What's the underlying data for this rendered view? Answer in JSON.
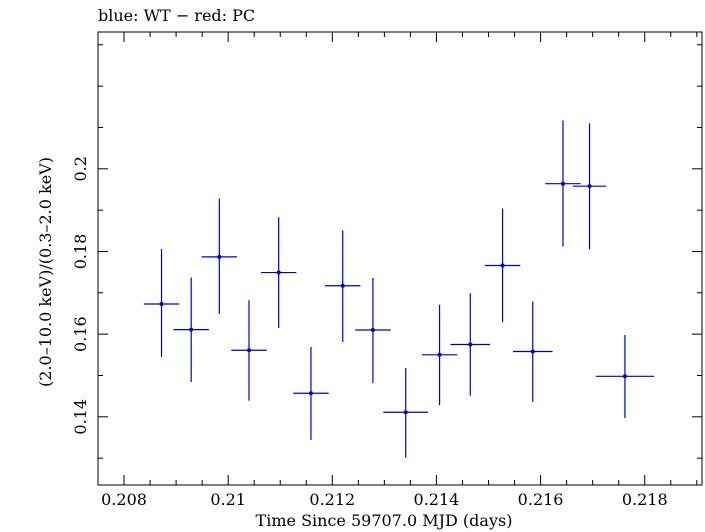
{
  "chart_data": {
    "type": "scatter",
    "title": "blue: WT − red: PC",
    "xlabel": "Time Since 59707.0 MJD (days)",
    "ylabel": "(2.0–10.0 keV)/(0.3–2.0 keV)",
    "xlim": [
      0.2075,
      0.2191
    ],
    "ylim": [
      0.1235,
      0.2331
    ],
    "x_ticks": [
      0.208,
      0.21,
      0.212,
      0.214,
      0.216,
      0.218
    ],
    "x_tick_labels": [
      "0.208",
      "0.21",
      "0.212",
      "0.214",
      "0.216",
      "0.218"
    ],
    "y_ticks": [
      0.14,
      0.16,
      0.18,
      0.2
    ],
    "y_tick_labels": [
      "0.14",
      "0.16",
      "0.18",
      "0.2"
    ],
    "grid": false,
    "series": [
      {
        "name": "WT",
        "color": "#0000cc",
        "points": [
          {
            "x": 0.20872,
            "y": 0.1673,
            "xerr": 0.00034,
            "yerr_low": 0.0128,
            "yerr_high": 0.0133
          },
          {
            "x": 0.20929,
            "y": 0.1611,
            "xerr": 0.00034,
            "yerr_low": 0.0127,
            "yerr_high": 0.0126
          },
          {
            "x": 0.20983,
            "y": 0.1787,
            "xerr": 0.00034,
            "yerr_low": 0.0138,
            "yerr_high": 0.0141
          },
          {
            "x": 0.2104,
            "y": 0.1561,
            "xerr": 0.00034,
            "yerr_low": 0.0122,
            "yerr_high": 0.0121
          },
          {
            "x": 0.21097,
            "y": 0.1749,
            "xerr": 0.00034,
            "yerr_low": 0.0134,
            "yerr_high": 0.0134
          },
          {
            "x": 0.21159,
            "y": 0.1457,
            "xerr": 0.00034,
            "yerr_low": 0.0113,
            "yerr_high": 0.0112
          },
          {
            "x": 0.2122,
            "y": 0.1717,
            "xerr": 0.00034,
            "yerr_low": 0.0136,
            "yerr_high": 0.0134
          },
          {
            "x": 0.21278,
            "y": 0.161,
            "xerr": 0.00034,
            "yerr_low": 0.0128,
            "yerr_high": 0.0126
          },
          {
            "x": 0.21341,
            "y": 0.1411,
            "xerr": 0.00043,
            "yerr_low": 0.011,
            "yerr_high": 0.0107
          },
          {
            "x": 0.21406,
            "y": 0.155,
            "xerr": 0.00034,
            "yerr_low": 0.0122,
            "yerr_high": 0.0121
          },
          {
            "x": 0.21465,
            "y": 0.1575,
            "xerr": 0.00038,
            "yerr_low": 0.0124,
            "yerr_high": 0.0124
          },
          {
            "x": 0.21527,
            "y": 0.1766,
            "xerr": 0.00034,
            "yerr_low": 0.0137,
            "yerr_high": 0.0138
          },
          {
            "x": 0.21585,
            "y": 0.1558,
            "xerr": 0.00038,
            "yerr_low": 0.0122,
            "yerr_high": 0.0121
          },
          {
            "x": 0.21643,
            "y": 0.1964,
            "xerr": 0.00034,
            "yerr_low": 0.0152,
            "yerr_high": 0.0153
          },
          {
            "x": 0.21694,
            "y": 0.1958,
            "xerr": 0.00032,
            "yerr_low": 0.0153,
            "yerr_high": 0.0152
          },
          {
            "x": 0.21762,
            "y": 0.1498,
            "xerr": 0.00056,
            "yerr_low": 0.0101,
            "yerr_high": 0.01
          }
        ]
      }
    ]
  }
}
